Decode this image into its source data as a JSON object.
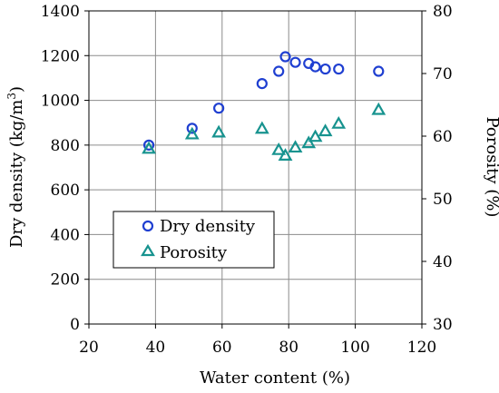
{
  "chart_data": {
    "type": "scatter",
    "xlabel": "Water content (%)",
    "ylabel_left": {
      "text": "Dry density (kg/m",
      "superscript": "3",
      "suffix": ")"
    },
    "ylabel_right": "Porosity (%)",
    "xlim": [
      20,
      120
    ],
    "ylim_left": [
      0,
      1400
    ],
    "ylim_right": [
      30,
      80
    ],
    "x_ticks": [
      20,
      40,
      60,
      80,
      100,
      120
    ],
    "y_left_ticks": [
      0,
      200,
      400,
      600,
      800,
      1000,
      1200,
      1400
    ],
    "y_right_ticks": [
      30,
      40,
      50,
      60,
      70,
      80
    ],
    "grid": true,
    "legend_position": "lower-left",
    "series": [
      {
        "name": "Dry density",
        "axis": "left",
        "marker": "circle",
        "color": "#1f3fd1",
        "points": [
          [
            38,
            800
          ],
          [
            51,
            875
          ],
          [
            59,
            965
          ],
          [
            72,
            1075
          ],
          [
            77,
            1130
          ],
          [
            79,
            1195
          ],
          [
            82,
            1170
          ],
          [
            86,
            1165
          ],
          [
            88,
            1150
          ],
          [
            91,
            1140
          ],
          [
            95,
            1140
          ],
          [
            107,
            1130
          ]
        ]
      },
      {
        "name": "Porosity",
        "axis": "right",
        "marker": "triangle",
        "color": "#17938f",
        "points": [
          [
            38,
            58.0
          ],
          [
            51,
            60.3
          ],
          [
            59,
            60.6
          ],
          [
            72,
            61.2
          ],
          [
            77,
            57.8
          ],
          [
            79,
            56.9
          ],
          [
            82,
            58.2
          ],
          [
            86,
            58.9
          ],
          [
            88,
            59.9
          ],
          [
            91,
            60.8
          ],
          [
            95,
            62.0
          ],
          [
            107,
            64.2
          ]
        ]
      }
    ]
  }
}
